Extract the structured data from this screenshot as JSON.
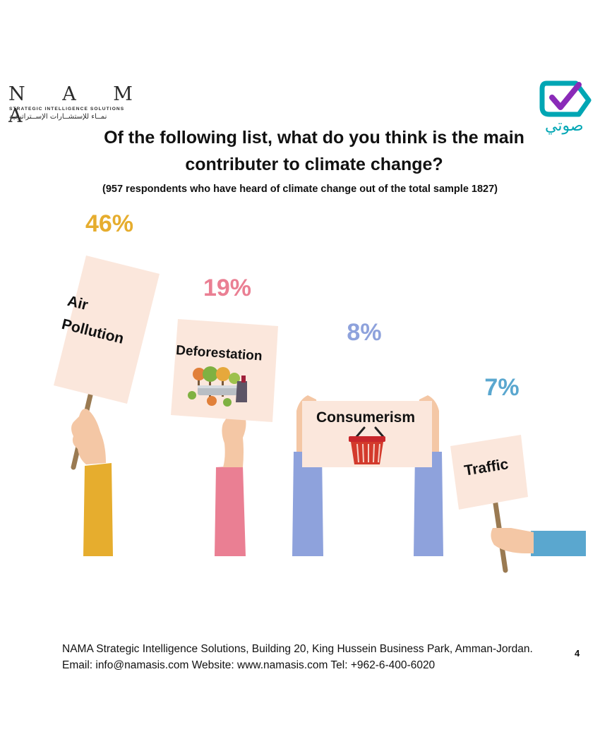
{
  "header": {
    "nama_logo_word": "N A M A",
    "nama_logo_subtitle": "STRATEGIC INTELLIGENCE SOLUTIONS",
    "nama_logo_arabic": "نمــاء للإستشــارات الإســتراتيجية",
    "sawti_logo_text": "صوتي"
  },
  "title_line1": "Of the following list, what do you think is the main",
  "title_line2": "contributer to climate change?",
  "subtitle": "(957 respondents who have heard of climate change out of the total sample 1827)",
  "chart_data": {
    "type": "bar",
    "title": "Of the following list, what do you think is the main contributer to climate change?",
    "subtitle": "(957 respondents who have heard of climate change out of the total sample 1827)",
    "categories": [
      "Air Pollution",
      "Deforestation",
      "Consumerism",
      "Traffic"
    ],
    "values": [
      46,
      19,
      8,
      7
    ],
    "value_labels": [
      "46%",
      "19%",
      "8%",
      "7%"
    ],
    "unit": "%",
    "colors": [
      "#e6ad2e",
      "#ea7f93",
      "#8ea2dc",
      "#5aa7cf"
    ]
  },
  "signs": {
    "air_line1": "Air",
    "air_line2": "Pollution",
    "deforestation": "Deforestation",
    "consumerism": "Consumerism",
    "traffic": "Traffic"
  },
  "footer": {
    "line1": "NAMA Strategic Intelligence Solutions, Building 20, King Hussein Business Park, Amman-Jordan.",
    "line2": "Email: info@namasis.com Website: www.namasis.com Tel: +962-6-400-6020",
    "page_number": "4"
  },
  "colors": {
    "sign_background": "#fbe7dc",
    "pole": "#9a7a52",
    "skin": "#f4c7a5"
  }
}
